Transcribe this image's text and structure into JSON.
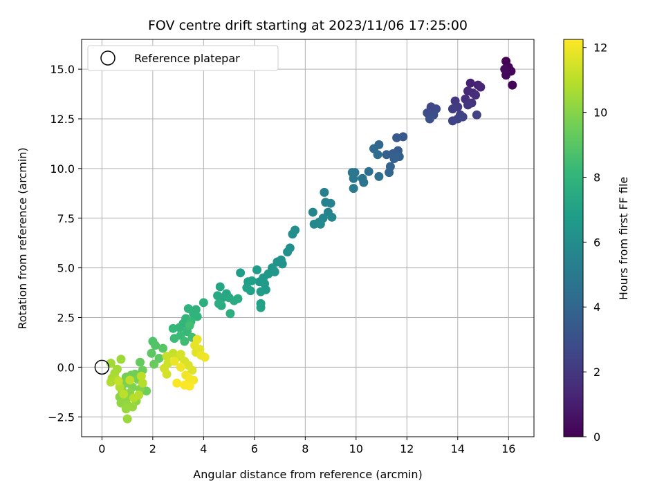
{
  "chart_data": {
    "type": "scatter",
    "title": "FOV centre drift starting at 2023/11/06 17:25:00",
    "xlabel": "Angular distance from reference (arcmin)",
    "ylabel": "Rotation from reference (arcmin)",
    "xlim": [
      -0.8,
      17.0
    ],
    "ylim": [
      -3.5,
      16.5
    ],
    "xticks": [
      0,
      2,
      4,
      6,
      8,
      10,
      12,
      14,
      16
    ],
    "xtick_labels": [
      "0",
      "2",
      "4",
      "6",
      "8",
      "10",
      "12",
      "14",
      "16"
    ],
    "yticks": [
      -2.5,
      0.0,
      2.5,
      5.0,
      7.5,
      10.0,
      12.5,
      15.0
    ],
    "ytick_labels": [
      "−2.5",
      "0.0",
      "2.5",
      "5.0",
      "7.5",
      "10.0",
      "12.5",
      "15.0"
    ],
    "grid": true,
    "legend": {
      "placement": "top-left",
      "entries": [
        {
          "label": "Reference platepar",
          "marker": "open-circle"
        }
      ]
    },
    "reference_point": {
      "x": 0,
      "y": 0
    },
    "colorbar": {
      "label": "Hours from first FF file",
      "range": [
        0,
        12.25
      ],
      "ticks": [
        0,
        2,
        4,
        6,
        8,
        10,
        12
      ],
      "tick_labels": [
        "0",
        "2",
        "4",
        "6",
        "8",
        "10",
        "12"
      ],
      "colormap": "viridis",
      "colors": [
        "#440154",
        "#482878",
        "#3e4a89",
        "#31688e",
        "#26828e",
        "#1f9e89",
        "#35b779",
        "#6ece58",
        "#b5de2b",
        "#fde725"
      ]
    },
    "points": [
      {
        "x": 15.9,
        "y": 15.4,
        "c": 0.0
      },
      {
        "x": 16.0,
        "y": 15.1,
        "c": 0.1
      },
      {
        "x": 16.1,
        "y": 14.9,
        "c": 0.15
      },
      {
        "x": 15.9,
        "y": 14.7,
        "c": 0.2
      },
      {
        "x": 16.15,
        "y": 14.2,
        "c": 0.1
      },
      {
        "x": 15.85,
        "y": 15.0,
        "c": 0.3
      },
      {
        "x": 14.5,
        "y": 14.3,
        "c": 1.1
      },
      {
        "x": 14.8,
        "y": 14.2,
        "c": 1.2
      },
      {
        "x": 14.9,
        "y": 14.1,
        "c": 1.3
      },
      {
        "x": 14.4,
        "y": 13.9,
        "c": 1.4
      },
      {
        "x": 14.6,
        "y": 13.8,
        "c": 1.5
      },
      {
        "x": 14.7,
        "y": 13.7,
        "c": 1.6
      },
      {
        "x": 14.3,
        "y": 13.5,
        "c": 1.7
      },
      {
        "x": 14.55,
        "y": 13.3,
        "c": 1.8
      },
      {
        "x": 14.4,
        "y": 13.2,
        "c": 1.9
      },
      {
        "x": 13.9,
        "y": 13.4,
        "c": 2.0
      },
      {
        "x": 14.0,
        "y": 13.1,
        "c": 2.1
      },
      {
        "x": 13.8,
        "y": 13.0,
        "c": 2.2
      },
      {
        "x": 14.1,
        "y": 12.7,
        "c": 2.3
      },
      {
        "x": 14.75,
        "y": 12.7,
        "c": 2.35
      },
      {
        "x": 14.0,
        "y": 12.5,
        "c": 2.4
      },
      {
        "x": 13.8,
        "y": 12.4,
        "c": 2.5
      },
      {
        "x": 14.2,
        "y": 12.6,
        "c": 2.5
      },
      {
        "x": 12.95,
        "y": 13.1,
        "c": 2.6
      },
      {
        "x": 13.15,
        "y": 13.0,
        "c": 2.7
      },
      {
        "x": 12.8,
        "y": 12.8,
        "c": 2.8
      },
      {
        "x": 13.05,
        "y": 12.7,
        "c": 2.9
      },
      {
        "x": 12.9,
        "y": 12.5,
        "c": 3.0
      },
      {
        "x": 11.85,
        "y": 11.6,
        "c": 3.3
      },
      {
        "x": 11.6,
        "y": 11.55,
        "c": 3.4
      },
      {
        "x": 11.65,
        "y": 10.9,
        "c": 3.5
      },
      {
        "x": 11.45,
        "y": 10.75,
        "c": 3.6
      },
      {
        "x": 11.2,
        "y": 10.7,
        "c": 3.7
      },
      {
        "x": 11.7,
        "y": 10.6,
        "c": 3.75
      },
      {
        "x": 11.5,
        "y": 10.5,
        "c": 3.8
      },
      {
        "x": 11.35,
        "y": 10.1,
        "c": 3.9
      },
      {
        "x": 11.3,
        "y": 9.8,
        "c": 4.0
      },
      {
        "x": 10.9,
        "y": 11.2,
        "c": 4.1
      },
      {
        "x": 10.7,
        "y": 11.0,
        "c": 4.2
      },
      {
        "x": 10.85,
        "y": 10.7,
        "c": 4.3
      },
      {
        "x": 10.5,
        "y": 9.85,
        "c": 4.4
      },
      {
        "x": 10.9,
        "y": 9.6,
        "c": 4.5
      },
      {
        "x": 10.3,
        "y": 9.3,
        "c": 4.6
      },
      {
        "x": 10.25,
        "y": 9.5,
        "c": 4.7
      },
      {
        "x": 9.95,
        "y": 9.8,
        "c": 4.8
      },
      {
        "x": 9.9,
        "y": 9.5,
        "c": 4.9
      },
      {
        "x": 9.9,
        "y": 9.0,
        "c": 5.0
      },
      {
        "x": 9.85,
        "y": 9.8,
        "c": 4.85
      },
      {
        "x": 8.75,
        "y": 8.8,
        "c": 5.3
      },
      {
        "x": 8.8,
        "y": 8.3,
        "c": 5.4
      },
      {
        "x": 9.0,
        "y": 8.25,
        "c": 5.45
      },
      {
        "x": 8.9,
        "y": 7.8,
        "c": 5.5
      },
      {
        "x": 8.3,
        "y": 7.8,
        "c": 5.6
      },
      {
        "x": 9.05,
        "y": 7.55,
        "c": 5.65
      },
      {
        "x": 8.7,
        "y": 7.5,
        "c": 5.7
      },
      {
        "x": 8.55,
        "y": 7.3,
        "c": 5.75
      },
      {
        "x": 8.35,
        "y": 7.2,
        "c": 5.8
      },
      {
        "x": 8.6,
        "y": 7.2,
        "c": 5.85
      },
      {
        "x": 7.6,
        "y": 6.9,
        "c": 6.0
      },
      {
        "x": 7.5,
        "y": 6.7,
        "c": 6.05
      },
      {
        "x": 7.4,
        "y": 6.0,
        "c": 6.1
      },
      {
        "x": 7.3,
        "y": 5.8,
        "c": 6.15
      },
      {
        "x": 7.05,
        "y": 5.4,
        "c": 6.2
      },
      {
        "x": 6.9,
        "y": 5.3,
        "c": 6.25
      },
      {
        "x": 7.1,
        "y": 5.2,
        "c": 6.3
      },
      {
        "x": 6.7,
        "y": 5.0,
        "c": 6.35
      },
      {
        "x": 6.8,
        "y": 4.8,
        "c": 6.4
      },
      {
        "x": 6.55,
        "y": 4.7,
        "c": 6.45
      },
      {
        "x": 6.35,
        "y": 4.5,
        "c": 6.5
      },
      {
        "x": 6.2,
        "y": 4.3,
        "c": 6.55
      },
      {
        "x": 6.4,
        "y": 4.2,
        "c": 6.6
      },
      {
        "x": 6.45,
        "y": 3.9,
        "c": 6.65
      },
      {
        "x": 6.25,
        "y": 3.8,
        "c": 6.7
      },
      {
        "x": 6.1,
        "y": 4.9,
        "c": 6.75
      },
      {
        "x": 5.45,
        "y": 4.75,
        "c": 6.8
      },
      {
        "x": 5.75,
        "y": 4.3,
        "c": 6.85
      },
      {
        "x": 5.9,
        "y": 4.35,
        "c": 6.9
      },
      {
        "x": 5.7,
        "y": 4.0,
        "c": 6.95
      },
      {
        "x": 5.85,
        "y": 3.85,
        "c": 7.0
      },
      {
        "x": 6.25,
        "y": 3.2,
        "c": 7.05
      },
      {
        "x": 6.25,
        "y": 3.0,
        "c": 7.1
      },
      {
        "x": 4.65,
        "y": 4.05,
        "c": 7.2
      },
      {
        "x": 4.9,
        "y": 3.7,
        "c": 7.25
      },
      {
        "x": 4.75,
        "y": 3.5,
        "c": 7.3
      },
      {
        "x": 4.55,
        "y": 3.6,
        "c": 7.35
      },
      {
        "x": 5.0,
        "y": 3.5,
        "c": 7.4
      },
      {
        "x": 5.2,
        "y": 3.35,
        "c": 7.45
      },
      {
        "x": 5.35,
        "y": 3.45,
        "c": 7.5
      },
      {
        "x": 4.7,
        "y": 3.1,
        "c": 7.55
      },
      {
        "x": 4.6,
        "y": 3.2,
        "c": 7.6
      },
      {
        "x": 5.05,
        "y": 2.7,
        "c": 7.65
      },
      {
        "x": 4.0,
        "y": 3.25,
        "c": 7.7
      },
      {
        "x": 3.7,
        "y": 2.9,
        "c": 7.8
      },
      {
        "x": 3.4,
        "y": 2.95,
        "c": 7.85
      },
      {
        "x": 3.6,
        "y": 2.7,
        "c": 7.9
      },
      {
        "x": 3.75,
        "y": 2.55,
        "c": 7.95
      },
      {
        "x": 3.3,
        "y": 2.45,
        "c": 8.0
      },
      {
        "x": 3.2,
        "y": 2.2,
        "c": 8.05
      },
      {
        "x": 3.05,
        "y": 2.0,
        "c": 8.1
      },
      {
        "x": 2.8,
        "y": 1.95,
        "c": 8.15
      },
      {
        "x": 3.5,
        "y": 2.3,
        "c": 8.2
      },
      {
        "x": 3.35,
        "y": 1.8,
        "c": 8.25
      },
      {
        "x": 3.1,
        "y": 1.6,
        "c": 8.3
      },
      {
        "x": 2.85,
        "y": 1.45,
        "c": 8.35
      },
      {
        "x": 3.25,
        "y": 1.3,
        "c": 8.4
      },
      {
        "x": 3.55,
        "y": 1.5,
        "c": 8.45
      },
      {
        "x": 3.45,
        "y": 2.1,
        "c": 8.5
      },
      {
        "x": 2.0,
        "y": 1.3,
        "c": 8.8
      },
      {
        "x": 2.1,
        "y": 1.1,
        "c": 8.9
      },
      {
        "x": 2.4,
        "y": 0.95,
        "c": 9.0
      },
      {
        "x": 1.95,
        "y": 0.7,
        "c": 9.1
      },
      {
        "x": 2.25,
        "y": 0.45,
        "c": 9.2
      },
      {
        "x": 1.5,
        "y": 0.25,
        "c": 9.3
      },
      {
        "x": 2.05,
        "y": 0.15,
        "c": 9.35
      },
      {
        "x": 1.6,
        "y": -0.15,
        "c": 9.4
      },
      {
        "x": 1.75,
        "y": -1.2,
        "c": 9.5
      },
      {
        "x": 1.3,
        "y": -0.35,
        "c": 9.55
      },
      {
        "x": 1.15,
        "y": -0.4,
        "c": 9.6
      },
      {
        "x": 0.95,
        "y": -0.5,
        "c": 9.65
      },
      {
        "x": 1.4,
        "y": -0.6,
        "c": 9.7
      },
      {
        "x": 1.05,
        "y": -0.8,
        "c": 9.75
      },
      {
        "x": 0.85,
        "y": -0.85,
        "c": 9.8
      },
      {
        "x": 1.2,
        "y": -1.0,
        "c": 9.85
      },
      {
        "x": 1.5,
        "y": -1.1,
        "c": 9.9
      },
      {
        "x": 0.8,
        "y": -1.2,
        "c": 9.95
      },
      {
        "x": 1.1,
        "y": -1.3,
        "c": 10.0
      },
      {
        "x": 0.7,
        "y": -1.5,
        "c": 10.05
      },
      {
        "x": 0.95,
        "y": -1.6,
        "c": 10.1
      },
      {
        "x": 1.35,
        "y": -1.7,
        "c": 10.15
      },
      {
        "x": 0.75,
        "y": -1.8,
        "c": 10.2
      },
      {
        "x": 1.0,
        "y": -1.9,
        "c": 10.25
      },
      {
        "x": 1.2,
        "y": -2.0,
        "c": 10.3
      },
      {
        "x": 0.95,
        "y": -2.1,
        "c": 10.35
      },
      {
        "x": 1.0,
        "y": -2.6,
        "c": 10.4
      },
      {
        "x": 0.75,
        "y": 0.4,
        "c": 10.45
      },
      {
        "x": 0.35,
        "y": 0.2,
        "c": 10.5
      },
      {
        "x": 0.6,
        "y": -0.1,
        "c": 10.55
      },
      {
        "x": 0.5,
        "y": -0.3,
        "c": 10.6
      },
      {
        "x": 0.4,
        "y": -0.55,
        "c": 10.65
      },
      {
        "x": 0.55,
        "y": -0.6,
        "c": 10.7
      },
      {
        "x": 0.35,
        "y": -0.75,
        "c": 10.75
      },
      {
        "x": 0.7,
        "y": -1.0,
        "c": 10.8
      },
      {
        "x": 1.6,
        "y": -0.8,
        "c": 10.85
      },
      {
        "x": 1.45,
        "y": -1.4,
        "c": 10.9
      },
      {
        "x": 1.25,
        "y": -1.55,
        "c": 10.95
      },
      {
        "x": 0.85,
        "y": -1.35,
        "c": 11.0
      },
      {
        "x": 1.55,
        "y": -0.45,
        "c": 11.05
      },
      {
        "x": 1.1,
        "y": -0.65,
        "c": 11.1
      },
      {
        "x": 0.65,
        "y": -0.7,
        "c": 11.15
      },
      {
        "x": 2.8,
        "y": 0.7,
        "c": 11.2
      },
      {
        "x": 2.55,
        "y": 0.55,
        "c": 11.25
      },
      {
        "x": 2.95,
        "y": 0.5,
        "c": 11.3
      },
      {
        "x": 2.6,
        "y": 0.2,
        "c": 11.35
      },
      {
        "x": 2.45,
        "y": -0.05,
        "c": 11.4
      },
      {
        "x": 2.55,
        "y": -0.35,
        "c": 11.45
      },
      {
        "x": 3.1,
        "y": 0.65,
        "c": 11.5
      },
      {
        "x": 3.25,
        "y": 0.3,
        "c": 11.55
      },
      {
        "x": 3.4,
        "y": 0.1,
        "c": 11.6
      },
      {
        "x": 3.55,
        "y": -0.15,
        "c": 11.65
      },
      {
        "x": 3.7,
        "y": 0.75,
        "c": 11.7
      },
      {
        "x": 3.85,
        "y": 0.9,
        "c": 11.75
      },
      {
        "x": 3.65,
        "y": 1.1,
        "c": 11.8
      },
      {
        "x": 3.75,
        "y": 1.4,
        "c": 11.85
      },
      {
        "x": 3.9,
        "y": 0.6,
        "c": 11.9
      },
      {
        "x": 4.05,
        "y": 0.5,
        "c": 11.95
      },
      {
        "x": 3.3,
        "y": -0.4,
        "c": 12.0
      },
      {
        "x": 3.45,
        "y": -0.6,
        "c": 12.05
      },
      {
        "x": 3.6,
        "y": -0.65,
        "c": 12.1
      },
      {
        "x": 2.95,
        "y": -0.8,
        "c": 12.15
      },
      {
        "x": 3.25,
        "y": -0.9,
        "c": 12.2
      },
      {
        "x": 3.45,
        "y": -0.95,
        "c": 12.2
      },
      {
        "x": 3.1,
        "y": 0.0,
        "c": 12.0
      },
      {
        "x": 2.85,
        "y": 0.3,
        "c": 11.9
      }
    ]
  }
}
